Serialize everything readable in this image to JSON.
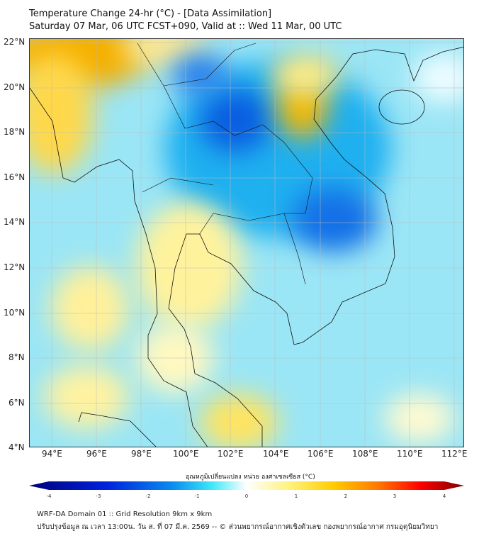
{
  "title": "Temperature Change 24-hr (°C) - [Data Assimilation]",
  "subtitle": "Saturday 07 Mar, 06 UTC FCST+090, Valid at :: Wed 11 Mar, 00 UTC",
  "lat_labels": [
    "22°N",
    "20°N",
    "18°N",
    "16°N",
    "14°N",
    "12°N",
    "10°N",
    "8°N",
    "6°N",
    "4°N"
  ],
  "lon_labels": [
    "94°E",
    "96°E",
    "98°E",
    "100°E",
    "102°E",
    "104°E",
    "106°E",
    "108°E",
    "110°E",
    "112°E"
  ],
  "colorbar": {
    "label": "อุณหภูมิเปลี่ยนแปลง หน่วย องศาเซลเซียส (°C)",
    "ticks": [
      "-4",
      "-3",
      "-2",
      "-1",
      "0",
      "1",
      "2",
      "3",
      "4"
    ],
    "range": [
      -4,
      4
    ],
    "colors": [
      "#00007a",
      "#0022dd",
      "#0a8cf0",
      "#3ee8f8",
      "#ffffff",
      "#fff27a",
      "#ffcc00",
      "#ff7a00",
      "#ff0000",
      "#7a0000"
    ]
  },
  "footer": {
    "line1": "WRF-DA Domain 01 :: Grid Resolution 9km x 9km",
    "line2": "ปรับปรุงข้อมูล ณ เวลา 13:00น. วัน ส. ที่ 07 มี.ค. 2569 -- © ส่วนพยากรณ์อากาศเชิงตัวเลข กองพยากรณ์อากาศ กรมอุตุนิยมวิทยา"
  }
}
